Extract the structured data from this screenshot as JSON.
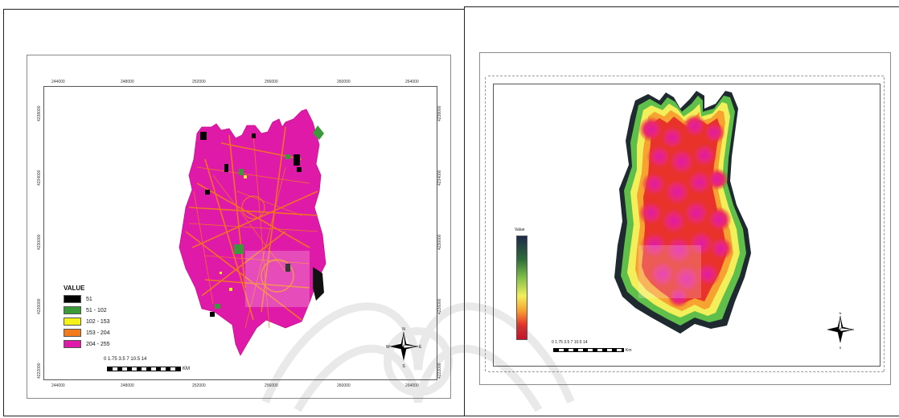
{
  "left_map": {
    "x_ticks": [
      "244000",
      "248000",
      "252000",
      "256000",
      "260000",
      "264000"
    ],
    "y_ticks": [
      "4238000",
      "4234000",
      "4230000",
      "4226000",
      "4222000"
    ],
    "legend": {
      "title": "VALUE",
      "items": [
        {
          "label": "51",
          "color": "#000000"
        },
        {
          "label": "51 - 102",
          "color": "#3a9a3a"
        },
        {
          "label": "102 - 153",
          "color": "#f5f21a"
        },
        {
          "label": "153 - 204",
          "color": "#f27a1a"
        },
        {
          "label": "204 - 255",
          "color": "#e01aa8"
        }
      ]
    },
    "scale": {
      "numbers": "0  1.75 3.5     7     10.5     14",
      "unit": "KM"
    }
  },
  "right_map": {
    "legend_title": "Value",
    "scale": {
      "numbers": "0 1.75 3.5    7    10.5    14",
      "unit": "Km"
    }
  },
  "colors": {
    "magenta": "#e01aa8",
    "orange": "#f27a1a",
    "heat_red": "#e8322a",
    "heat_yellow": "#f2ef5a",
    "heat_green": "#5fbf4a",
    "heat_dark": "#1e2a30"
  }
}
